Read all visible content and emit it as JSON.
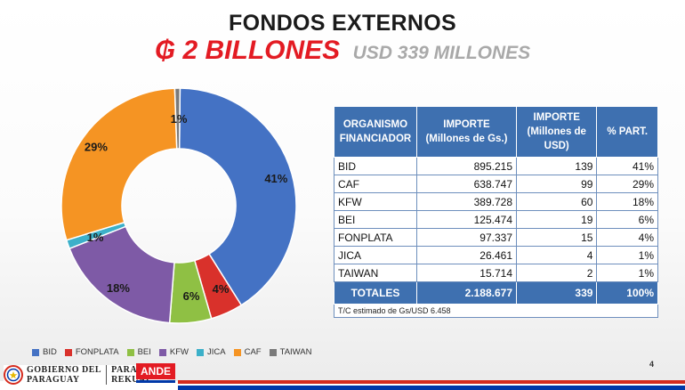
{
  "header": {
    "title": "FONDOS EXTERNOS",
    "amount_gs": "₲ 2 BILLONES",
    "amount_usd": "USD 339 MILLONES"
  },
  "chart_data": {
    "type": "pie",
    "donut": true,
    "categories": [
      "BID",
      "FONPLATA",
      "BEI",
      "KFW",
      "JICA",
      "CAF",
      "TAIWAN"
    ],
    "values": [
      895.215,
      97.337,
      125.474,
      389.728,
      26.461,
      638.747,
      15.714
    ],
    "data_labels": [
      "41%",
      "4%",
      "6%",
      "18%",
      "1%",
      "29%",
      "1%"
    ],
    "colors": [
      "#4472c4",
      "#d9312b",
      "#8fc044",
      "#7e5aa6",
      "#3cb0c9",
      "#f59423",
      "#7a7a7a"
    ],
    "legend_position": "bottom"
  },
  "table": {
    "headers": [
      "ORGANISMO FINANCIADOR",
      "IMPORTE (Millones de Gs.)",
      "IMPORTE (Millones de USD)",
      "% PART."
    ],
    "rows": [
      [
        "BID",
        "895.215",
        "139",
        "41%"
      ],
      [
        "CAF",
        "638.747",
        "99",
        "29%"
      ],
      [
        "KFW",
        "389.728",
        "60",
        "18%"
      ],
      [
        "BEI",
        "125.474",
        "19",
        "6%"
      ],
      [
        "FONPLATA",
        "97.337",
        "15",
        "4%"
      ],
      [
        "JICA",
        "26.461",
        "4",
        "1%"
      ],
      [
        "TAIWAN",
        "15.714",
        "2",
        "1%"
      ]
    ],
    "totals": [
      "TOTALES",
      "2.188.677",
      "339",
      "100%"
    ],
    "note": "T/C estimado de Gs/USD 6.458"
  },
  "footer": {
    "page_number": "4",
    "gov_line1": "GOBIERNO DEL",
    "gov_line2": "PARAGUAY",
    "gov_line3": "PARAGUÁI",
    "gov_line4": "REKUÁI",
    "ande": "ANDE"
  }
}
